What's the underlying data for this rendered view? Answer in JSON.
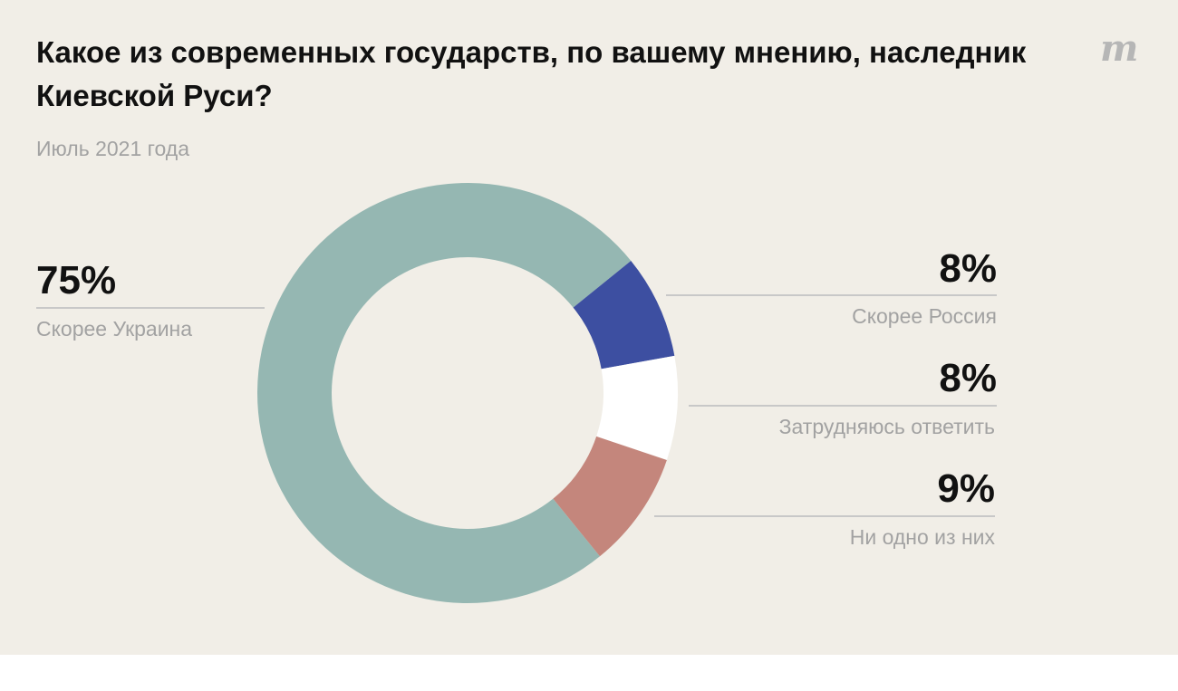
{
  "title": "Какое из современных государств, по вашему мнению, наследник Киевской Руси?",
  "subtitle": "Июль 2021 года",
  "logo": "m",
  "colors": {
    "background": "#f1eee7",
    "ukraine": "#95b7b2",
    "russia": "#3d4fa1",
    "undecided": "#ffffff",
    "none": "#c4867c"
  },
  "chart_data": {
    "type": "pie",
    "donut": true,
    "title": "Какое из современных государств, по вашему мнению, наследник Киевской Руси?",
    "subtitle": "Июль 2021 года",
    "unit": "%",
    "categories": [
      "Скорее Украина",
      "Скорее Россия",
      "Затрудняюсь ответить",
      "Ни одно из них"
    ],
    "values": [
      75,
      8,
      8,
      9
    ],
    "value_labels": [
      "75%",
      "8%",
      "8%",
      "9%"
    ],
    "colors": [
      "#95b7b2",
      "#3d4fa1",
      "#ffffff",
      "#c4867c"
    ]
  }
}
